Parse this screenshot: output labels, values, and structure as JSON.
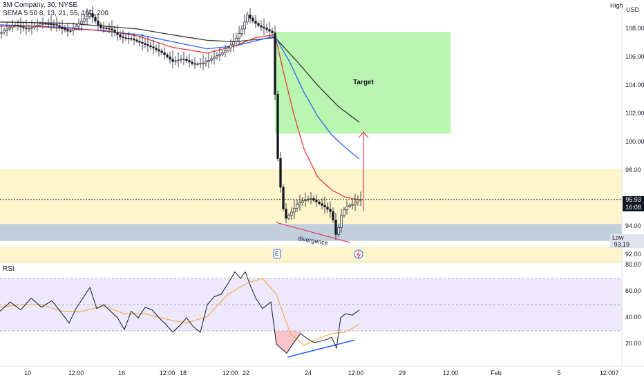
{
  "header": {
    "symbol_line": "3M Company, 30, NYSE",
    "ema_line": "SEMA 5 50 8, 13, 21, 55, 100, 200",
    "high_label": "High",
    "currency": "USD"
  },
  "rsi_label": "RSI",
  "price_tag": {
    "price": "95.93",
    "countdown": "16:08"
  },
  "low_tag": {
    "label": "Low",
    "value": "93.19"
  },
  "annotations": {
    "target": "Target",
    "divergence": "divergence"
  },
  "events": {
    "earnings": "E"
  },
  "colors": {
    "target_zone": "#b9f7b0",
    "resistance_zone": "#fff5cc",
    "support_zone": "#c2cfdd",
    "rsi_band": "#ede8fb",
    "ema_red": "#e53935",
    "ema_blue": "#2962ff",
    "ema_black": "#333333",
    "arrow": "#e53955",
    "rsi_line": "#131722",
    "rsi_ma": "#f7a23b",
    "div_price": "#e53955",
    "div_rsi": "#2962ff"
  },
  "chart_data": [
    {
      "type": "candlestick",
      "title": "3M Company, 30, NYSE",
      "y_ticks": [
        "108.00",
        "106.00",
        "104.00",
        "102.00",
        "100.00",
        "98.00",
        "94.00",
        "92.00"
      ],
      "ylim": [
        91,
        110
      ],
      "x_ticks": [
        "10",
        "12:00",
        "16",
        "12:00",
        "18",
        "12:00",
        "22",
        "24",
        "12:00",
        "29",
        "12:00",
        "Feb",
        "5",
        "12:00",
        "7"
      ],
      "last_price": 95.93,
      "session_low": 93.19,
      "zones": [
        {
          "name": "Target",
          "from": 100.6,
          "to": 107.8
        },
        {
          "name": "resistance",
          "from": 94.2,
          "to": 98.1
        },
        {
          "name": "support",
          "from": 93.0,
          "to": 94.2
        }
      ],
      "price_path": [
        [
          0,
          107.7
        ],
        [
          20,
          108.3
        ],
        [
          40,
          108.0
        ],
        [
          60,
          108.4
        ],
        [
          80,
          108.3
        ],
        [
          100,
          107.8
        ],
        [
          115,
          108.4
        ],
        [
          130,
          109.1
        ],
        [
          145,
          108.1
        ],
        [
          160,
          108.0
        ],
        [
          175,
          107.4
        ],
        [
          190,
          107.3
        ],
        [
          205,
          107.0
        ],
        [
          220,
          106.7
        ],
        [
          235,
          106.3
        ],
        [
          250,
          105.7
        ],
        [
          265,
          105.9
        ],
        [
          280,
          105.5
        ],
        [
          295,
          105.6
        ],
        [
          310,
          106.0
        ],
        [
          325,
          106.4
        ],
        [
          340,
          107.2
        ],
        [
          350,
          108.0
        ],
        [
          358,
          109.0
        ],
        [
          365,
          108.6
        ],
        [
          375,
          108.2
        ],
        [
          385,
          108.0
        ],
        [
          395,
          107.7
        ],
        [
          400,
          100.5
        ],
        [
          403,
          98.0
        ],
        [
          408,
          96.0
        ],
        [
          412,
          94.5
        ],
        [
          420,
          94.9
        ],
        [
          430,
          95.6
        ],
        [
          440,
          95.9
        ],
        [
          450,
          96.0
        ],
        [
          460,
          95.7
        ],
        [
          470,
          95.4
        ],
        [
          480,
          95.0
        ],
        [
          487,
          93.2
        ],
        [
          493,
          94.7
        ],
        [
          500,
          95.4
        ],
        [
          510,
          95.6
        ],
        [
          518,
          95.9
        ],
        [
          522,
          95.93
        ]
      ],
      "ema_fast": [
        [
          0,
          108.2
        ],
        [
          50,
          108.2
        ],
        [
          100,
          108.0
        ],
        [
          150,
          107.9
        ],
        [
          200,
          107.5
        ],
        [
          250,
          106.7
        ],
        [
          300,
          106.3
        ],
        [
          340,
          106.8
        ],
        [
          370,
          107.4
        ],
        [
          398,
          107.6
        ],
        [
          410,
          105.0
        ],
        [
          425,
          102.0
        ],
        [
          440,
          99.5
        ],
        [
          460,
          97.5
        ],
        [
          480,
          96.6
        ],
        [
          500,
          96.1
        ],
        [
          520,
          95.9
        ]
      ],
      "ema_mid": [
        [
          0,
          108.3
        ],
        [
          100,
          108.1
        ],
        [
          200,
          107.6
        ],
        [
          260,
          107.0
        ],
        [
          300,
          106.6
        ],
        [
          340,
          106.8
        ],
        [
          398,
          107.5
        ],
        [
          420,
          105.6
        ],
        [
          440,
          103.5
        ],
        [
          460,
          101.8
        ],
        [
          480,
          100.5
        ],
        [
          500,
          99.6
        ],
        [
          520,
          98.8
        ]
      ],
      "ema_slow": [
        [
          0,
          108.5
        ],
        [
          100,
          108.4
        ],
        [
          200,
          108.0
        ],
        [
          260,
          107.5
        ],
        [
          300,
          107.2
        ],
        [
          340,
          107.1
        ],
        [
          398,
          107.4
        ],
        [
          430,
          105.7
        ],
        [
          460,
          104.0
        ],
        [
          490,
          102.5
        ],
        [
          520,
          101.4
        ]
      ]
    },
    {
      "type": "line",
      "title": "RSI",
      "y_ticks": [
        "80.00",
        "60.00",
        "40.00",
        "20.00"
      ],
      "ylim": [
        9,
        83
      ],
      "bands": [
        30,
        50,
        70
      ],
      "rsi": [
        [
          0,
          45
        ],
        [
          15,
          52
        ],
        [
          30,
          46
        ],
        [
          45,
          55
        ],
        [
          60,
          48
        ],
        [
          75,
          53
        ],
        [
          90,
          43
        ],
        [
          100,
          36
        ],
        [
          110,
          47
        ],
        [
          120,
          55
        ],
        [
          130,
          63
        ],
        [
          140,
          47
        ],
        [
          150,
          50
        ],
        [
          160,
          45
        ],
        [
          170,
          40
        ],
        [
          180,
          31
        ],
        [
          190,
          45
        ],
        [
          200,
          40
        ],
        [
          210,
          48
        ],
        [
          220,
          46
        ],
        [
          230,
          40
        ],
        [
          240,
          35
        ],
        [
          250,
          29
        ],
        [
          260,
          34
        ],
        [
          270,
          40
        ],
        [
          280,
          33
        ],
        [
          290,
          29
        ],
        [
          300,
          50
        ],
        [
          310,
          56
        ],
        [
          320,
          58
        ],
        [
          330,
          66
        ],
        [
          340,
          75
        ],
        [
          348,
          70
        ],
        [
          355,
          75
        ],
        [
          362,
          65
        ],
        [
          370,
          55
        ],
        [
          380,
          47
        ],
        [
          392,
          52
        ],
        [
          400,
          20
        ],
        [
          408,
          16
        ],
        [
          415,
          13
        ],
        [
          425,
          21
        ],
        [
          435,
          28
        ],
        [
          445,
          24
        ],
        [
          455,
          21
        ],
        [
          470,
          23
        ],
        [
          480,
          25
        ],
        [
          487,
          17
        ],
        [
          493,
          40
        ],
        [
          500,
          43
        ],
        [
          510,
          42
        ],
        [
          520,
          46
        ]
      ],
      "rsi_ma": [
        [
          0,
          48
        ],
        [
          30,
          50
        ],
        [
          60,
          50
        ],
        [
          90,
          45
        ],
        [
          120,
          45
        ],
        [
          150,
          49
        ],
        [
          180,
          43
        ],
        [
          210,
          43
        ],
        [
          240,
          39
        ],
        [
          270,
          36
        ],
        [
          300,
          41
        ],
        [
          330,
          58
        ],
        [
          360,
          67
        ],
        [
          380,
          70
        ],
        [
          400,
          58
        ],
        [
          420,
          28
        ],
        [
          440,
          19
        ],
        [
          460,
          24
        ],
        [
          480,
          28
        ],
        [
          500,
          29
        ],
        [
          520,
          35
        ]
      ]
    }
  ]
}
